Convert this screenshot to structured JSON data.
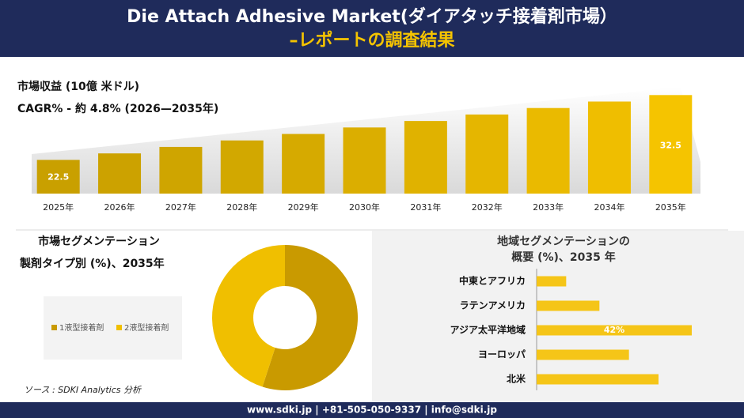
{
  "header": {
    "title": "Die Attach Adhesive Market(ダイアタッチ接着剤市場）",
    "subtitle": "–レポートの調査結果"
  },
  "source": "ソース : SDKI Analytics 分析",
  "footer": "www.sdki.jp | +81-505-050-9337 | info@sdki.jp",
  "chart_data": [
    {
      "type": "bar",
      "title": "市場収益 (10億 米ドル)",
      "subtitle": "CAGR% - 約 4.8% (2026—2035年)",
      "categories": [
        "2025年",
        "2026年",
        "2027年",
        "2028年",
        "2029年",
        "2030年",
        "2031年",
        "2032年",
        "2033年",
        "2034年",
        "2035年"
      ],
      "values": [
        22.5,
        23.5,
        24.5,
        25.5,
        26.5,
        27.5,
        28.5,
        29.5,
        30.5,
        31.5,
        32.5
      ],
      "value_labels": [
        "22.5",
        null,
        null,
        null,
        null,
        null,
        null,
        null,
        null,
        null,
        "32.5"
      ],
      "colors": [
        "#c9a000",
        "#cca200",
        "#cfa500",
        "#d2a800",
        "#d6aa00",
        "#dbae00",
        "#e0b200",
        "#e5b600",
        "#eaba00",
        "#efbe00",
        "#f5c400"
      ],
      "ylim": [
        17.3,
        34
      ]
    },
    {
      "type": "donut",
      "title": "市場セグメンテーション",
      "subtitle": "製剤タイプ別 (%)、2035年",
      "series": [
        {
          "name": "1液型接着剤",
          "color": "#c99a00",
          "values": [
            55
          ]
        },
        {
          "name": "2液型接着剤",
          "color": "#f0bf00",
          "values": [
            45
          ]
        }
      ]
    },
    {
      "type": "hbar",
      "title": "地域セグメンテーションの",
      "subtitle": "概要 (%)、2035 年",
      "categories": [
        "中東とアフリカ",
        "ラテンアメリカ",
        "アジア太平洋地域",
        "ヨーロッパ",
        "北米"
      ],
      "values": [
        8,
        17,
        42,
        25,
        33
      ],
      "value_labels": [
        null,
        null,
        "42%",
        null,
        null
      ],
      "color": "#f5c518",
      "xlim": [
        0,
        45
      ]
    }
  ]
}
